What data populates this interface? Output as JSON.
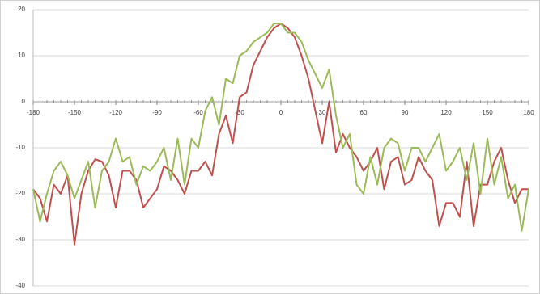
{
  "chart_data": {
    "type": "line",
    "x": [
      -180,
      -175,
      -170,
      -165,
      -160,
      -155,
      -150,
      -145,
      -140,
      -135,
      -130,
      -125,
      -120,
      -115,
      -110,
      -105,
      -100,
      -95,
      -90,
      -85,
      -80,
      -75,
      -70,
      -65,
      -60,
      -55,
      -50,
      -45,
      -40,
      -35,
      -30,
      -25,
      -20,
      -15,
      -10,
      -5,
      0,
      5,
      10,
      15,
      20,
      25,
      30,
      35,
      40,
      45,
      50,
      55,
      60,
      65,
      70,
      75,
      80,
      85,
      90,
      95,
      100,
      105,
      110,
      115,
      120,
      125,
      130,
      135,
      140,
      145,
      150,
      155,
      160,
      165,
      170,
      175,
      180
    ],
    "series": [
      {
        "color": "#c0504d",
        "values": [
          -19,
          -21,
          -26,
          -18,
          -20,
          -16,
          -31,
          -20,
          -15,
          -12.5,
          -13,
          -16,
          -23,
          -15,
          -15,
          -17,
          -23,
          -21,
          -19,
          -14,
          -15,
          -17,
          -20,
          -15,
          -15,
          -13,
          -16,
          -7,
          -3,
          -9,
          1,
          2,
          8,
          11,
          14,
          16,
          17,
          16,
          14,
          10,
          5,
          -2,
          -9,
          0,
          -11,
          -7,
          -10,
          -12,
          -15,
          -13,
          -10,
          -19,
          -13,
          -12,
          -18,
          -17,
          -12,
          -15,
          -17,
          -27,
          -22,
          -22,
          -25,
          -13,
          -27,
          -18,
          -18,
          -13,
          -10,
          -17,
          -22,
          -19,
          -19
        ]
      },
      {
        "color": "#9bbb59",
        "values": [
          -19,
          -26,
          -20,
          -15,
          -13,
          -16,
          -21,
          -17,
          -13,
          -23,
          -15,
          -13,
          -8,
          -13,
          -12,
          -18,
          -14,
          -15,
          -13,
          -10,
          -17,
          -8,
          -18,
          -8,
          -10,
          -2,
          1,
          -5,
          5,
          4,
          10,
          11,
          13,
          14,
          15,
          17,
          17,
          15,
          15,
          13,
          9,
          6,
          3,
          7,
          -3,
          -10,
          -7,
          -18,
          -20,
          -12,
          -18,
          -10,
          -8,
          -9,
          -15,
          -10,
          -10,
          -13,
          -10,
          -7,
          -15,
          -13,
          -10,
          -17,
          -9,
          -20,
          -8,
          -18,
          -12,
          -21,
          -18,
          -28,
          -19
        ]
      }
    ],
    "xlim": [
      -180,
      180
    ],
    "xticks": [
      -180,
      -150,
      -120,
      -90,
      -60,
      -30,
      0,
      30,
      60,
      90,
      120,
      150,
      180
    ],
    "ylim": [
      -40,
      20
    ],
    "yticks": [
      -40,
      -30,
      -20,
      -10,
      0,
      10,
      20
    ],
    "grid": true
  }
}
